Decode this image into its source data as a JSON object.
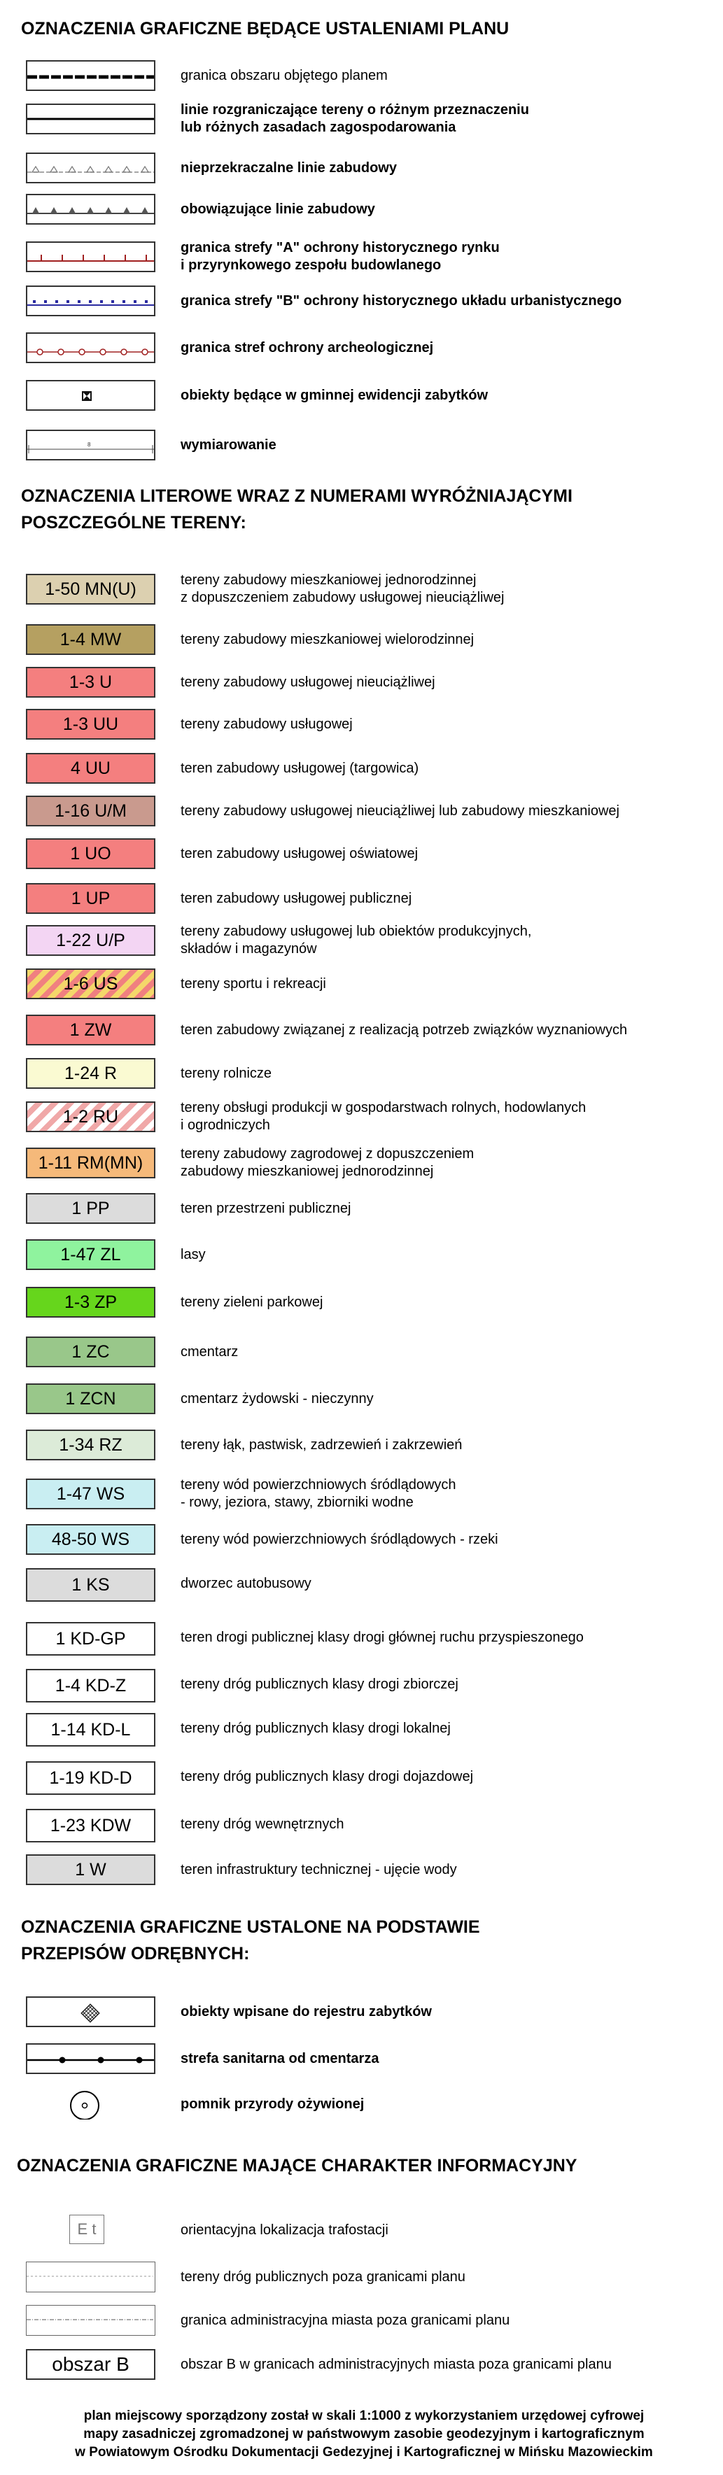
{
  "section1": {
    "title": "OZNACZENIA GRAFICZNE BĘDĄCE USTALENIAMI PLANU",
    "items": [
      {
        "icon": "plan-boundary-line-icon",
        "lines": [
          "granica obszaru objętego planem"
        ],
        "bold": false
      },
      {
        "icon": "dividing-line-icon",
        "lines": [
          "linie rozgraniczające tereny o różnym przeznaczeniu",
          "lub różnych zasadach zagospodarowania"
        ],
        "bold": true
      },
      {
        "icon": "non-exceedable-building-line-icon",
        "lines": [
          "nieprzekraczalne linie zabudowy"
        ],
        "bold": true
      },
      {
        "icon": "mandatory-building-line-icon",
        "lines": [
          "obowiązujące linie zabudowy"
        ],
        "bold": true
      },
      {
        "icon": "zone-a-boundary-icon",
        "lines": [
          "granica strefy \"A\" ochrony historycznego rynku",
          "i przyrynkowego zespołu budowlanego"
        ],
        "bold": true
      },
      {
        "icon": "zone-b-boundary-icon",
        "lines": [
          "granica strefy \"B\" ochrony historycznego układu urbanistycznego"
        ],
        "bold": true
      },
      {
        "icon": "archaeology-zone-boundary-icon",
        "lines": [
          "granica stref ochrony archeologicznej"
        ],
        "bold": true
      },
      {
        "icon": "municipal-monument-record-icon",
        "lines": [
          "obiekty będące w gminnej ewidencji zabytków"
        ],
        "bold": true
      },
      {
        "icon": "dimensioning-icon",
        "lines": [
          "wymiarowanie"
        ],
        "bold": true
      }
    ]
  },
  "section2": {
    "title_lines": [
      "OZNACZENIA LITEROWE WRAZ Z NUMERAMI WYRÓŻNIAJĄCYMI",
      "POSZCZEGÓLNE TERENY:"
    ],
    "items": [
      {
        "label": "1-50 MN(U)",
        "color": "#dcd0b0",
        "pattern": "",
        "lines": [
          "tereny zabudowy mieszkaniowej jednorodzinnej",
          "z dopuszczeniem zabudowy usługowej nieuciążliwej"
        ]
      },
      {
        "label": "1-4 MW",
        "color": "#b5a061",
        "pattern": "",
        "lines": [
          "tereny zabudowy mieszkaniowej wielorodzinnej"
        ]
      },
      {
        "label": "1-3 U",
        "color": "#f47f7f",
        "pattern": "",
        "lines": [
          "tereny zabudowy usługowej nieuciążliwej"
        ]
      },
      {
        "label": "1-3 UU",
        "color": "#f47f7f",
        "pattern": "",
        "lines": [
          "tereny zabudowy usługowej"
        ]
      },
      {
        "label": "4 UU",
        "color": "#f47f7f",
        "pattern": "",
        "lines": [
          "teren zabudowy usługowej (targowica)"
        ]
      },
      {
        "label": "1-16 U/M",
        "color": "#c99a8e",
        "pattern": "",
        "lines": [
          "tereny zabudowy usługowej nieuciążliwej lub zabudowy mieszkaniowej"
        ]
      },
      {
        "label": "1 UO",
        "color": "#f47f7f",
        "pattern": "",
        "lines": [
          "teren zabudowy usługowej oświatowej"
        ]
      },
      {
        "label": "1 UP",
        "color": "#f47f7f",
        "pattern": "",
        "lines": [
          "teren zabudowy usługowej publicznej"
        ]
      },
      {
        "label": "1-22 U/P",
        "color": "#f3d5f3",
        "pattern": "",
        "lines": [
          "tereny zabudowy usługowej lub obiektów produkcyjnych,",
          "składów i magazynów"
        ]
      },
      {
        "label": "1-6 US",
        "color": "#f4d76a",
        "pattern": "stripe-y",
        "lines": [
          "tereny sportu i rekreacji"
        ]
      },
      {
        "label": "1 ZW",
        "color": "#f47f7f",
        "pattern": "",
        "lines": [
          "teren zabudowy związanej z realizacją potrzeb związków wyznaniowych"
        ]
      },
      {
        "label": "1-24 R",
        "color": "#fafad2",
        "pattern": "",
        "lines": [
          "tereny rolnicze"
        ]
      },
      {
        "label": "1-2 RU",
        "color": "#f0a8a8",
        "pattern": "stripe-p",
        "lines": [
          "tereny obsługi produkcji w gospodarstwach rolnych, hodowlanych",
          "i ogrodniczych"
        ]
      },
      {
        "label": "1-11 RM(MN)",
        "color": "#f5b97a",
        "pattern": "",
        "lines": [
          "tereny zabudowy zagrodowej z dopuszczeniem",
          "zabudowy mieszkaniowej jednorodzinnej"
        ]
      },
      {
        "label": "1 PP",
        "color": "#dcdcdc",
        "pattern": "",
        "lines": [
          "teren przestrzeni publicznej"
        ]
      },
      {
        "label": "1-47 ZL",
        "color": "#8ff39e",
        "pattern": "",
        "lines": [
          "lasy"
        ]
      },
      {
        "label": "1-3 ZP",
        "color": "#66d61c",
        "pattern": "",
        "lines": [
          "tereny zieleni parkowej"
        ]
      },
      {
        "label": "1 ZC",
        "color": "#99c78a",
        "pattern": "",
        "lines": [
          "cmentarz"
        ]
      },
      {
        "label": "1 ZCN",
        "color": "#99c78a",
        "pattern": "",
        "lines": [
          "cmentarz żydowski - nieczynny"
        ]
      },
      {
        "label": "1-34 RZ",
        "color": "#dcebd8",
        "pattern": "",
        "lines": [
          "tereny łąk, pastwisk, zadrzewień i zakrzewień"
        ]
      },
      {
        "label": "1-47 WS",
        "color": "#c9eef2",
        "pattern": "",
        "lines": [
          "tereny wód powierzchniowych śródlądowych",
          "- rowy, jeziora, stawy, zbiorniki wodne"
        ]
      },
      {
        "label": "48-50 WS",
        "color": "#c9eef2",
        "pattern": "",
        "lines": [
          "tereny wód powierzchniowych śródlądowych - rzeki"
        ]
      },
      {
        "label": "1 KS",
        "color": "#dcdcdc",
        "pattern": "",
        "lines": [
          "dworzec autobusowy"
        ]
      },
      {
        "label": "1 KD-GP",
        "color": "#ffffff",
        "pattern": "",
        "lines": [
          "teren drogi publicznej klasy drogi głównej ruchu przyspieszonego"
        ]
      },
      {
        "label": "1-4 KD-Z",
        "color": "#ffffff",
        "pattern": "",
        "lines": [
          "tereny dróg publicznych klasy drogi zbiorczej"
        ]
      },
      {
        "label": "1-14 KD-L",
        "color": "#ffffff",
        "pattern": "",
        "lines": [
          "tereny dróg publicznych klasy drogi lokalnej"
        ]
      },
      {
        "label": "1-19 KD-D",
        "color": "#ffffff",
        "pattern": "",
        "lines": [
          "tereny dróg publicznych klasy drogi dojazdowej"
        ]
      },
      {
        "label": "1-23 KDW",
        "color": "#ffffff",
        "pattern": "",
        "lines": [
          "tereny dróg wewnętrznych"
        ]
      },
      {
        "label": "1 W",
        "color": "#dcdcdc",
        "pattern": "",
        "lines": [
          "teren infrastruktury technicznej - ujęcie wody"
        ]
      }
    ]
  },
  "section3": {
    "title_lines": [
      "OZNACZENIA GRAFICZNE USTALONE NA PODSTAWIE",
      "PRZEPISÓW ODRĘBNYCH:"
    ],
    "items": [
      {
        "icon": "registered-monument-icon",
        "lines": [
          "obiekty wpisane do rejestru zabytków"
        ]
      },
      {
        "icon": "cemetery-sanitary-zone-icon",
        "lines": [
          "strefa sanitarna od cmentarza"
        ]
      },
      {
        "icon": "nature-monument-icon",
        "lines": [
          "pomnik przyrody ożywionej"
        ]
      }
    ]
  },
  "section4": {
    "title": "OZNACZENIA GRAFICZNE MAJĄCE CHARAKTER INFORMACYJNY",
    "items": [
      {
        "icon": "transformer-station-icon",
        "symbol_text": "E t",
        "lines": [
          "orientacyjna lokalizacja trafostacji"
        ]
      },
      {
        "icon": "roads-outside-plan-icon",
        "symbol_text": "",
        "lines": [
          "tereny dróg publicznych poza granicami planu"
        ]
      },
      {
        "icon": "city-admin-boundary-icon",
        "symbol_text": "",
        "lines": [
          "granica administracyjna miasta poza granicami planu"
        ]
      },
      {
        "icon": "area-b-icon",
        "symbol_text": "obszar B",
        "lines": [
          "obszar B w granicach administracyjnych miasta poza granicami planu"
        ]
      }
    ]
  },
  "footer": {
    "lines": [
      "plan miejscowy sporządzony został w skali 1:1000 z wykorzystaniem urzędowej cyfrowej",
      "mapy zasadniczej zgromadzonej w państwowym zasobie geodezyjnym i kartograficznym",
      "w Powiatowym Ośrodku Dokumentacji Gedezyjnej i Kartograficznej  w Mińsku Mazowieckim"
    ]
  }
}
